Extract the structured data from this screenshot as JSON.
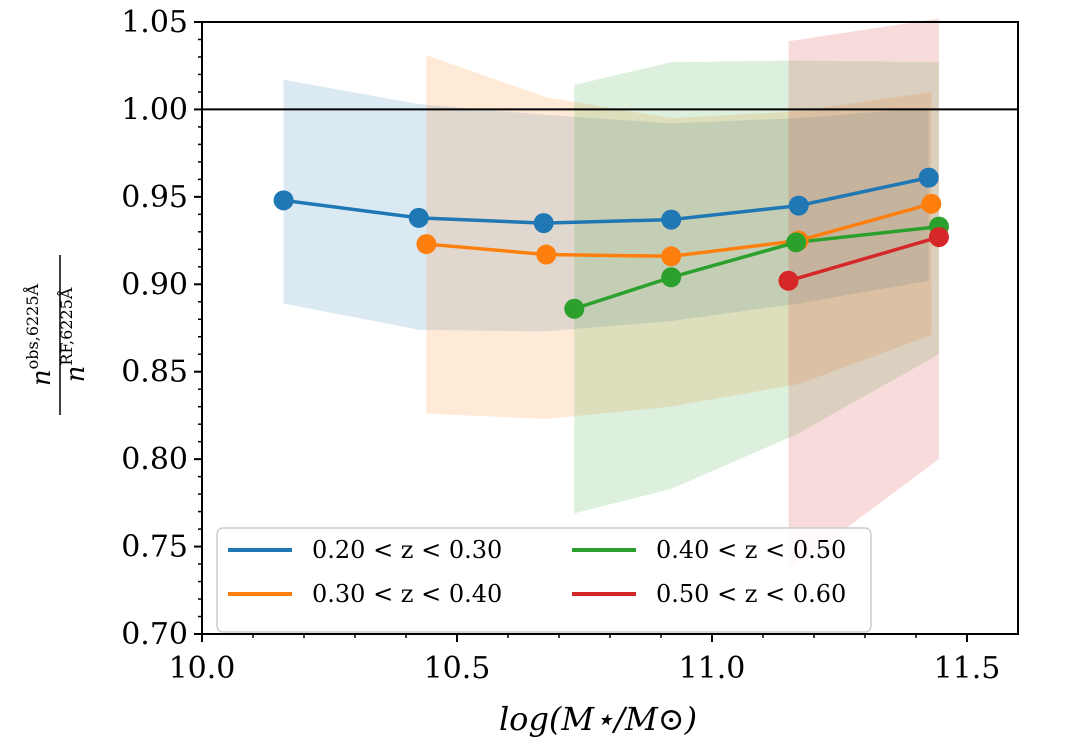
{
  "chart_data": {
    "type": "line",
    "title": "",
    "xlabel": "log(M⋆/M⊙)",
    "ylabel": {
      "numerator_base": "n",
      "numerator_sup": "obs,6225Å",
      "denominator_base": "n",
      "denominator_sup": "RF,6225Å"
    },
    "xlim": [
      10.0,
      11.6
    ],
    "ylim": [
      0.7,
      1.05
    ],
    "xticks": [
      "10.0",
      "10.5",
      "11.0",
      "11.5"
    ],
    "yticks": [
      "0.70",
      "0.75",
      "0.80",
      "0.85",
      "0.90",
      "0.95",
      "1.00",
      "1.05"
    ],
    "reference_line": 1.0,
    "legend_position": "lower-left",
    "series": [
      {
        "name": "0.20 < z < 0.30",
        "color": "#1f77b4",
        "x": [
          10.16,
          10.425,
          10.67,
          10.92,
          11.17,
          11.425
        ],
        "y": [
          0.948,
          0.938,
          0.935,
          0.937,
          0.945,
          0.961
        ],
        "lower": [
          0.889,
          0.874,
          0.873,
          0.879,
          0.889,
          0.902
        ],
        "upper": [
          1.017,
          1.003,
          0.997,
          0.992,
          0.995,
          1.001
        ]
      },
      {
        "name": "0.30 < z < 0.40",
        "color": "#ff7f0e",
        "x": [
          10.44,
          10.675,
          10.92,
          11.17,
          11.43
        ],
        "y": [
          0.923,
          0.917,
          0.916,
          0.925,
          0.946
        ],
        "lower": [
          0.826,
          0.823,
          0.83,
          0.843,
          0.871
        ],
        "upper": [
          1.031,
          1.007,
          0.995,
          0.999,
          1.01
        ]
      },
      {
        "name": "0.40 < z < 0.50",
        "color": "#2ca02c",
        "x": [
          10.73,
          10.92,
          11.165,
          11.445
        ],
        "y": [
          0.886,
          0.904,
          0.924,
          0.933
        ],
        "lower": [
          0.769,
          0.783,
          0.814,
          0.86
        ],
        "upper": [
          1.014,
          1.027,
          1.028,
          1.027
        ]
      },
      {
        "name": "0.50 < z < 0.60",
        "color": "#d62728",
        "x": [
          11.15,
          11.445
        ],
        "y": [
          0.902,
          0.927
        ],
        "lower": [
          0.736,
          0.8
        ],
        "upper": [
          1.039,
          1.052
        ]
      }
    ]
  }
}
